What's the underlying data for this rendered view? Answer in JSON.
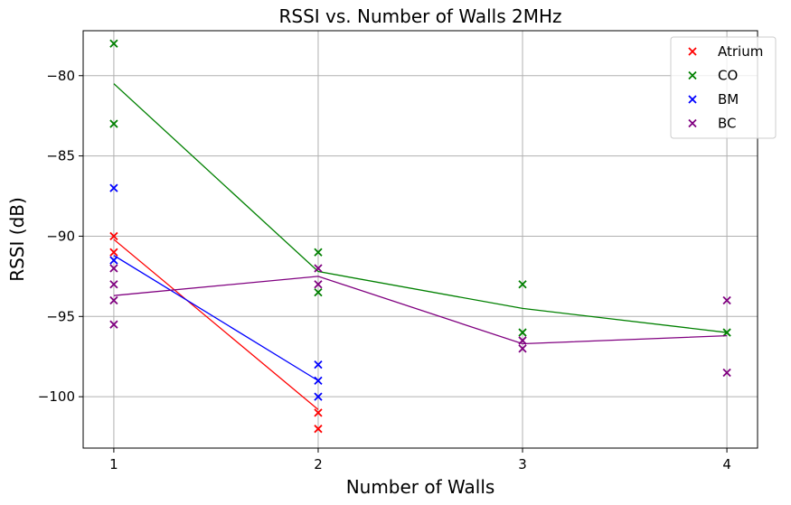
{
  "chart_data": {
    "type": "scatter",
    "title": "RSSI vs. Number of Walls 2MHz",
    "xlabel": "Number of Walls",
    "ylabel": "RSSI (dB)",
    "xlim": [
      0.85,
      4.15
    ],
    "ylim": [
      -103.2,
      -77.2
    ],
    "xticks": [
      1,
      2,
      3,
      4
    ],
    "xtick_labels": [
      "1",
      "2",
      "3",
      "4"
    ],
    "yticks": [
      -100,
      -95,
      -90,
      -85,
      -80
    ],
    "ytick_labels": [
      "−100",
      "−95",
      "−90",
      "−85",
      "−80"
    ],
    "grid": true,
    "legend_position": "top-right",
    "series": [
      {
        "name": "Atrium",
        "color": "#ff0000",
        "points": [
          [
            1,
            -90
          ],
          [
            1,
            -91
          ],
          [
            2,
            -101
          ],
          [
            2,
            -102
          ]
        ],
        "trend": [
          [
            1,
            -90.2
          ],
          [
            2,
            -100.8
          ]
        ]
      },
      {
        "name": "CO",
        "color": "#008000",
        "points": [
          [
            1,
            -78
          ],
          [
            1,
            -83
          ],
          [
            2,
            -91
          ],
          [
            2,
            -93.5
          ],
          [
            3,
            -93
          ],
          [
            3,
            -96
          ],
          [
            4,
            -96
          ]
        ],
        "trend": [
          [
            1,
            -80.5
          ],
          [
            2,
            -92.2
          ],
          [
            3,
            -94.5
          ],
          [
            4,
            -96
          ]
        ]
      },
      {
        "name": "BM",
        "color": "#0000ff",
        "points": [
          [
            1,
            -87
          ],
          [
            1,
            -91.5
          ],
          [
            2,
            -98
          ],
          [
            2,
            -99
          ],
          [
            2,
            -100
          ]
        ],
        "trend": [
          [
            1,
            -91.2
          ],
          [
            2,
            -99
          ]
        ]
      },
      {
        "name": "BC",
        "color": "#800080",
        "points": [
          [
            1,
            -92
          ],
          [
            1,
            -93
          ],
          [
            1,
            -94
          ],
          [
            1,
            -95.5
          ],
          [
            2,
            -92
          ],
          [
            2,
            -93
          ],
          [
            3,
            -96.5
          ],
          [
            3,
            -97
          ],
          [
            4,
            -94
          ],
          [
            4,
            -98.5
          ]
        ],
        "trend": [
          [
            1,
            -93.7
          ],
          [
            2,
            -92.5
          ],
          [
            3,
            -96.7
          ],
          [
            4,
            -96.2
          ]
        ]
      }
    ]
  }
}
